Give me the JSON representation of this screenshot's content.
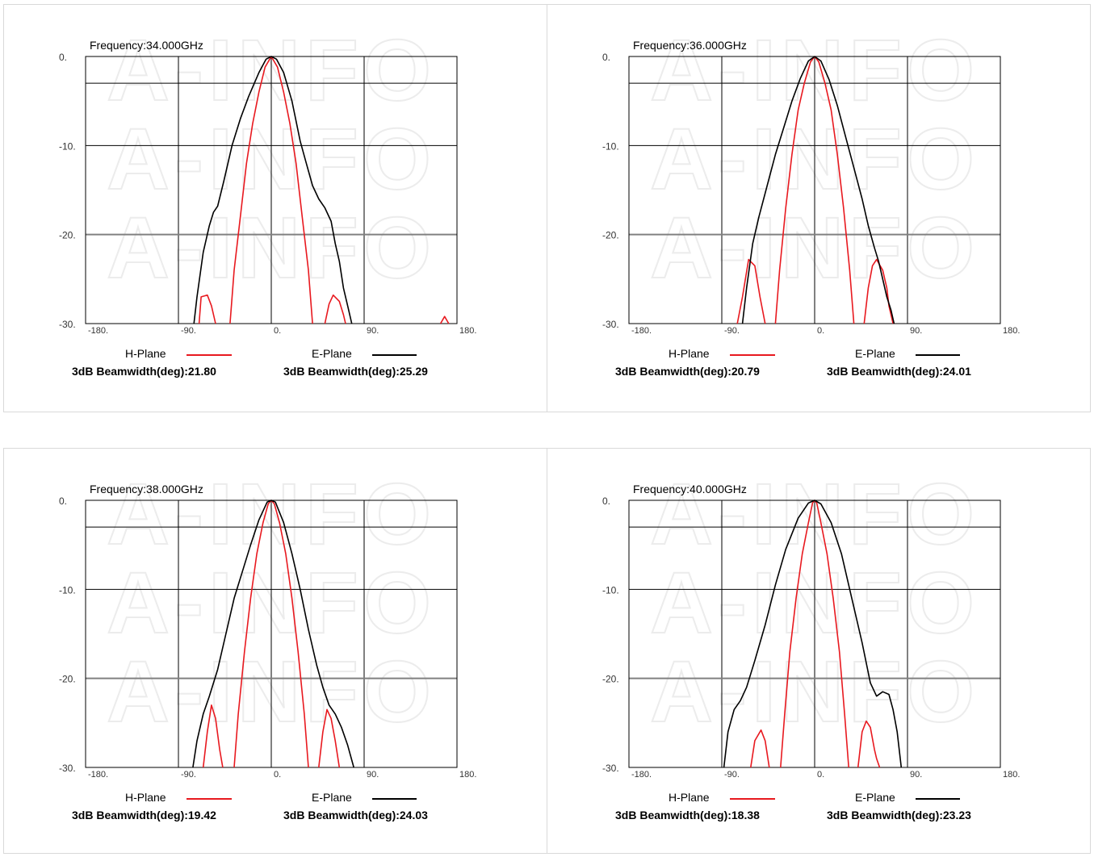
{
  "watermark": "A-INFO",
  "colors": {
    "h_plane": "#e8191f",
    "e_plane": "#000000",
    "grid": "#000000",
    "grid_3db": "#808080",
    "border": "#d9d9d9"
  },
  "chart_data": [
    {
      "type": "line",
      "title": "Frequency:34.000GHz",
      "xlim": [
        -180,
        180
      ],
      "ylim": [
        -30,
        0
      ],
      "x_ticks": [
        "-180.",
        "-90.",
        "0.",
        "90.",
        "180."
      ],
      "y_ticks": [
        "0.",
        "-10.",
        "-20.",
        "-30."
      ],
      "reference_line_db": -3,
      "legend": {
        "h_label": "H-Plane",
        "e_label": "E-Plane"
      },
      "h_beamwidth_text": "3dB Beamwidth(deg):21.80",
      "e_beamwidth_text": "3dB Beamwidth(deg):25.29",
      "series": [
        {
          "name": "H-Plane",
          "segments": [
            [
              [
                -70,
                -30
              ],
              [
                -68,
                -27
              ],
              [
                -62,
                -26.8
              ],
              [
                -58,
                -28
              ],
              [
                -54,
                -30
              ]
            ],
            [
              [
                -40,
                -30
              ],
              [
                -36,
                -24
              ],
              [
                -30,
                -18
              ],
              [
                -24,
                -12
              ],
              [
                -18,
                -7.5
              ],
              [
                -12,
                -4
              ],
              [
                -6,
                -1.2
              ],
              [
                0,
                0
              ],
              [
                6,
                -1.2
              ],
              [
                12,
                -4
              ],
              [
                18,
                -7.5
              ],
              [
                24,
                -12
              ],
              [
                30,
                -18
              ],
              [
                36,
                -24
              ],
              [
                40,
                -30
              ]
            ],
            [
              [
                52,
                -30
              ],
              [
                56,
                -27.8
              ],
              [
                60,
                -26.8
              ],
              [
                66,
                -27.5
              ],
              [
                70,
                -29
              ],
              [
                72,
                -30
              ]
            ],
            [
              [
                164,
                -30
              ],
              [
                168,
                -29.2
              ],
              [
                172,
                -30
              ]
            ]
          ]
        },
        {
          "name": "E-Plane",
          "segments": [
            [
              [
                -75,
                -30
              ],
              [
                -72,
                -27
              ],
              [
                -66,
                -22
              ],
              [
                -60,
                -19
              ],
              [
                -56,
                -17.5
              ],
              [
                -52,
                -16.8
              ],
              [
                -46,
                -14
              ],
              [
                -38,
                -10
              ],
              [
                -30,
                -7
              ],
              [
                -22,
                -4.5
              ],
              [
                -12,
                -1.8
              ],
              [
                -5,
                -0.3
              ],
              [
                0,
                0
              ],
              [
                5,
                -0.3
              ],
              [
                12,
                -1.8
              ],
              [
                20,
                -5
              ],
              [
                28,
                -9.5
              ],
              [
                34,
                -12
              ],
              [
                40,
                -14.5
              ],
              [
                46,
                -16
              ],
              [
                52,
                -17
              ],
              [
                58,
                -18.5
              ],
              [
                62,
                -21
              ],
              [
                66,
                -23
              ],
              [
                70,
                -26
              ],
              [
                74,
                -28
              ],
              [
                78,
                -30
              ]
            ]
          ]
        }
      ]
    },
    {
      "type": "line",
      "title": "Frequency:36.000GHz",
      "xlim": [
        -180,
        180
      ],
      "ylim": [
        -30,
        0
      ],
      "x_ticks": [
        "-180.",
        "-90.",
        "0.",
        "90.",
        "180."
      ],
      "y_ticks": [
        "0.",
        "-10.",
        "-20.",
        "-30."
      ],
      "reference_line_db": -3,
      "legend": {
        "h_label": "H-Plane",
        "e_label": "E-Plane"
      },
      "h_beamwidth_text": "3dB Beamwidth(deg):20.79",
      "e_beamwidth_text": "3dB Beamwidth(deg):24.01",
      "series": [
        {
          "name": "H-Plane",
          "segments": [
            [
              [
                -75,
                -30
              ],
              [
                -70,
                -27
              ],
              [
                -64,
                -22.8
              ],
              [
                -58,
                -23.5
              ],
              [
                -53,
                -27
              ],
              [
                -48,
                -30
              ]
            ],
            [
              [
                -38,
                -30
              ],
              [
                -34,
                -24
              ],
              [
                -28,
                -17
              ],
              [
                -22,
                -11
              ],
              [
                -16,
                -6
              ],
              [
                -10,
                -3
              ],
              [
                -4,
                -0.6
              ],
              [
                0,
                0
              ],
              [
                4,
                -0.6
              ],
              [
                10,
                -3
              ],
              [
                16,
                -6
              ],
              [
                22,
                -11
              ],
              [
                28,
                -17
              ],
              [
                34,
                -24
              ],
              [
                38,
                -30
              ]
            ],
            [
              [
                48,
                -30
              ],
              [
                52,
                -26
              ],
              [
                56,
                -23.5
              ],
              [
                60,
                -22.8
              ],
              [
                66,
                -24
              ],
              [
                70,
                -26
              ],
              [
                72,
                -28
              ],
              [
                76,
                -30
              ]
            ]
          ]
        },
        {
          "name": "E-Plane",
          "segments": [
            [
              [
                -70,
                -30
              ],
              [
                -66,
                -26
              ],
              [
                -60,
                -21
              ],
              [
                -54,
                -18
              ],
              [
                -46,
                -14.5
              ],
              [
                -38,
                -11
              ],
              [
                -30,
                -8
              ],
              [
                -22,
                -5
              ],
              [
                -14,
                -2.5
              ],
              [
                -6,
                -0.5
              ],
              [
                0,
                0
              ],
              [
                6,
                -0.5
              ],
              [
                14,
                -2.6
              ],
              [
                22,
                -5.5
              ],
              [
                30,
                -9
              ],
              [
                38,
                -12.5
              ],
              [
                46,
                -16
              ],
              [
                52,
                -19
              ],
              [
                58,
                -21.5
              ],
              [
                62,
                -23
              ],
              [
                66,
                -25
              ],
              [
                70,
                -27
              ],
              [
                74,
                -28.5
              ],
              [
                77,
                -30
              ]
            ]
          ]
        }
      ]
    },
    {
      "type": "line",
      "title": "Frequency:38.000GHz",
      "xlim": [
        -180,
        180
      ],
      "ylim": [
        -30,
        0
      ],
      "x_ticks": [
        "-180.",
        "-90.",
        "0.",
        "90.",
        "180."
      ],
      "y_ticks": [
        "0.",
        "-10.",
        "-20.",
        "-30."
      ],
      "reference_line_db": -3,
      "legend": {
        "h_label": "H-Plane",
        "e_label": "E-Plane"
      },
      "h_beamwidth_text": "3dB Beamwidth(deg):19.42",
      "e_beamwidth_text": "3dB Beamwidth(deg):24.03",
      "series": [
        {
          "name": "H-Plane",
          "segments": [
            [
              [
                -66,
                -30
              ],
              [
                -62,
                -26
              ],
              [
                -58,
                -23
              ],
              [
                -54,
                -24.5
              ],
              [
                -50,
                -28
              ],
              [
                -47,
                -30
              ]
            ],
            [
              [
                -36,
                -30
              ],
              [
                -32,
                -24
              ],
              [
                -26,
                -17
              ],
              [
                -20,
                -11
              ],
              [
                -14,
                -6
              ],
              [
                -8,
                -2.5
              ],
              [
                -3,
                -0.4
              ],
              [
                0,
                0
              ],
              [
                3,
                -0.4
              ],
              [
                8,
                -2.5
              ],
              [
                14,
                -6
              ],
              [
                20,
                -11
              ],
              [
                26,
                -17
              ],
              [
                32,
                -24
              ],
              [
                36,
                -30
              ]
            ],
            [
              [
                46,
                -30
              ],
              [
                50,
                -26
              ],
              [
                54,
                -23.5
              ],
              [
                58,
                -24.5
              ],
              [
                62,
                -27
              ],
              [
                66,
                -30
              ]
            ]
          ]
        },
        {
          "name": "E-Plane",
          "segments": [
            [
              [
                -76,
                -30
              ],
              [
                -72,
                -27
              ],
              [
                -66,
                -24
              ],
              [
                -60,
                -22
              ],
              [
                -52,
                -19
              ],
              [
                -44,
                -15
              ],
              [
                -36,
                -11
              ],
              [
                -28,
                -8
              ],
              [
                -20,
                -5
              ],
              [
                -12,
                -2.2
              ],
              [
                -4,
                -0.2
              ],
              [
                0,
                0
              ],
              [
                4,
                -0.2
              ],
              [
                12,
                -2.5
              ],
              [
                20,
                -6
              ],
              [
                28,
                -10
              ],
              [
                36,
                -14.5
              ],
              [
                44,
                -18.5
              ],
              [
                50,
                -21
              ],
              [
                56,
                -23
              ],
              [
                62,
                -24
              ],
              [
                68,
                -25.5
              ],
              [
                74,
                -27.5
              ],
              [
                80,
                -30
              ]
            ]
          ]
        }
      ]
    },
    {
      "type": "line",
      "title": "Frequency:40.000GHz",
      "xlim": [
        -180,
        180
      ],
      "ylim": [
        -30,
        0
      ],
      "x_ticks": [
        "-180.",
        "-90.",
        "0.",
        "90.",
        "180."
      ],
      "y_ticks": [
        "0.",
        "-10.",
        "-20.",
        "-30."
      ],
      "reference_line_db": -3,
      "legend": {
        "h_label": "H-Plane",
        "e_label": "E-Plane"
      },
      "h_beamwidth_text": "3dB Beamwidth(deg):18.38",
      "e_beamwidth_text": "3dB Beamwidth(deg):23.23",
      "series": [
        {
          "name": "H-Plane",
          "segments": [
            [
              [
                -62,
                -30
              ],
              [
                -58,
                -27
              ],
              [
                -52,
                -25.8
              ],
              [
                -48,
                -27
              ],
              [
                -44,
                -30
              ]
            ],
            [
              [
                -33,
                -30
              ],
              [
                -29,
                -24
              ],
              [
                -24,
                -17
              ],
              [
                -18,
                -11
              ],
              [
                -12,
                -6
              ],
              [
                -6,
                -2.5
              ],
              [
                -2,
                -0.3
              ],
              [
                0,
                0
              ],
              [
                2,
                -0.3
              ],
              [
                6,
                -2.5
              ],
              [
                12,
                -6
              ],
              [
                18,
                -11
              ],
              [
                24,
                -17
              ],
              [
                29,
                -24
              ],
              [
                33,
                -30
              ]
            ],
            [
              [
                42,
                -30
              ],
              [
                46,
                -26
              ],
              [
                50,
                -24.8
              ],
              [
                54,
                -25.5
              ],
              [
                58,
                -28
              ],
              [
                60,
                -29
              ],
              [
                63,
                -30
              ]
            ]
          ]
        },
        {
          "name": "E-Plane",
          "segments": [
            [
              [
                -88,
                -30
              ],
              [
                -84,
                -26
              ],
              [
                -78,
                -23.5
              ],
              [
                -72,
                -22.5
              ],
              [
                -66,
                -21
              ],
              [
                -58,
                -18
              ],
              [
                -48,
                -14
              ],
              [
                -38,
                -9.5
              ],
              [
                -28,
                -5.5
              ],
              [
                -16,
                -2
              ],
              [
                -6,
                -0.3
              ],
              [
                0,
                0
              ],
              [
                6,
                -0.4
              ],
              [
                16,
                -2.5
              ],
              [
                26,
                -6
              ],
              [
                36,
                -11
              ],
              [
                46,
                -16
              ],
              [
                54,
                -20.5
              ],
              [
                60,
                -22
              ],
              [
                66,
                -21.5
              ],
              [
                72,
                -21.8
              ],
              [
                76,
                -23.5
              ],
              [
                80,
                -26
              ],
              [
                84,
                -30
              ]
            ]
          ]
        }
      ]
    }
  ]
}
